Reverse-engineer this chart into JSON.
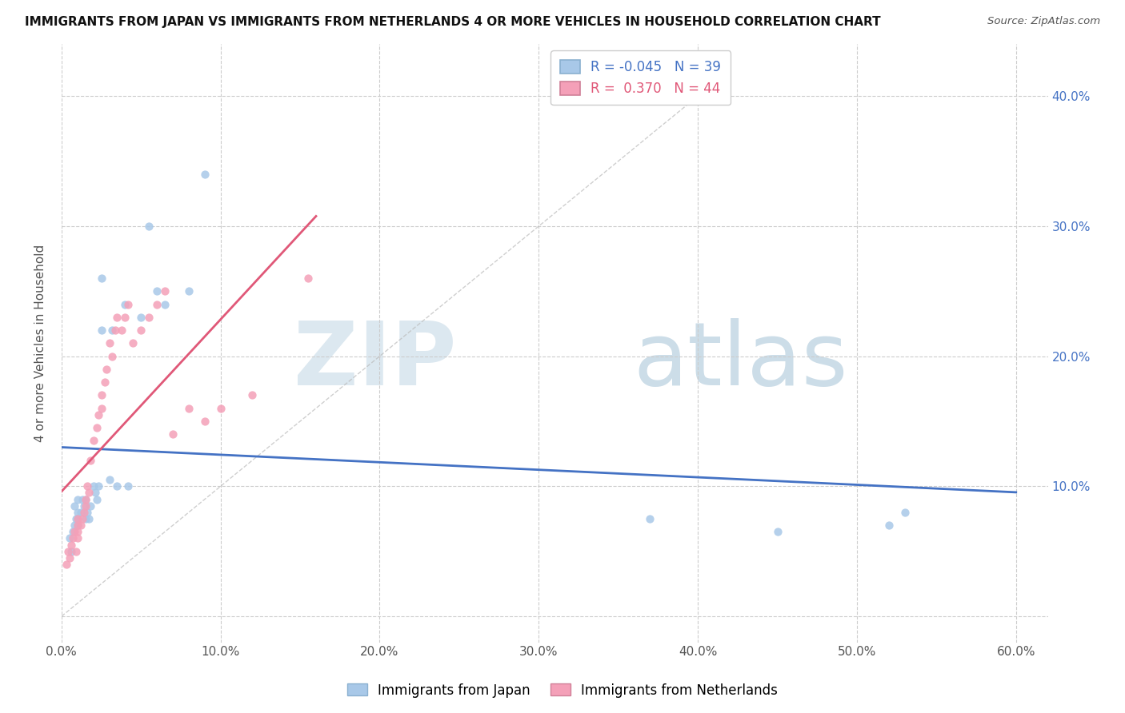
{
  "title": "IMMIGRANTS FROM JAPAN VS IMMIGRANTS FROM NETHERLANDS 4 OR MORE VEHICLES IN HOUSEHOLD CORRELATION CHART",
  "source": "Source: ZipAtlas.com",
  "ylabel": "4 or more Vehicles in Household",
  "xlim": [
    0.0,
    0.62
  ],
  "ylim": [
    -0.02,
    0.44
  ],
  "xticks": [
    0.0,
    0.1,
    0.2,
    0.3,
    0.4,
    0.5,
    0.6
  ],
  "yticks": [
    0.0,
    0.1,
    0.2,
    0.3,
    0.4
  ],
  "xticklabels": [
    "0.0%",
    "10.0%",
    "20.0%",
    "30.0%",
    "40.0%",
    "50.0%",
    "60.0%"
  ],
  "yticklabels_right": [
    "10.0%",
    "20.0%",
    "30.0%",
    "40.0%"
  ],
  "japan_color": "#a8c8e8",
  "netherlands_color": "#f4a0b8",
  "japan_line_color": "#4472c4",
  "netherlands_line_color": "#e05878",
  "japan_R": -0.045,
  "japan_N": 39,
  "netherlands_R": 0.37,
  "netherlands_N": 44,
  "japan_x": [
    0.005,
    0.006,
    0.007,
    0.008,
    0.008,
    0.009,
    0.01,
    0.01,
    0.01,
    0.01,
    0.012,
    0.013,
    0.014,
    0.015,
    0.015,
    0.016,
    0.017,
    0.018,
    0.02,
    0.021,
    0.022,
    0.023,
    0.025,
    0.025,
    0.03,
    0.032,
    0.035,
    0.04,
    0.042,
    0.05,
    0.055,
    0.06,
    0.065,
    0.08,
    0.09,
    0.37,
    0.45,
    0.52,
    0.53
  ],
  "japan_y": [
    0.06,
    0.05,
    0.065,
    0.07,
    0.085,
    0.075,
    0.09,
    0.08,
    0.075,
    0.07,
    0.08,
    0.09,
    0.085,
    0.075,
    0.09,
    0.08,
    0.075,
    0.085,
    0.1,
    0.095,
    0.09,
    0.1,
    0.22,
    0.26,
    0.105,
    0.22,
    0.1,
    0.24,
    0.1,
    0.23,
    0.3,
    0.25,
    0.24,
    0.25,
    0.34,
    0.075,
    0.065,
    0.07,
    0.08
  ],
  "neth_x": [
    0.003,
    0.004,
    0.005,
    0.006,
    0.007,
    0.008,
    0.009,
    0.01,
    0.01,
    0.01,
    0.01,
    0.012,
    0.013,
    0.014,
    0.015,
    0.015,
    0.016,
    0.017,
    0.018,
    0.02,
    0.022,
    0.023,
    0.025,
    0.025,
    0.027,
    0.028,
    0.03,
    0.032,
    0.034,
    0.035,
    0.038,
    0.04,
    0.042,
    0.045,
    0.05,
    0.055,
    0.06,
    0.065,
    0.07,
    0.08,
    0.09,
    0.1,
    0.12,
    0.155
  ],
  "neth_y": [
    0.04,
    0.05,
    0.045,
    0.055,
    0.06,
    0.065,
    0.05,
    0.06,
    0.07,
    0.065,
    0.075,
    0.07,
    0.075,
    0.08,
    0.085,
    0.09,
    0.1,
    0.095,
    0.12,
    0.135,
    0.145,
    0.155,
    0.17,
    0.16,
    0.18,
    0.19,
    0.21,
    0.2,
    0.22,
    0.23,
    0.22,
    0.23,
    0.24,
    0.21,
    0.22,
    0.23,
    0.24,
    0.25,
    0.14,
    0.16,
    0.15,
    0.16,
    0.17,
    0.26
  ],
  "watermark_zip": "ZIP",
  "watermark_atlas": "atlas",
  "background_color": "#ffffff",
  "grid_color": "#cccccc"
}
